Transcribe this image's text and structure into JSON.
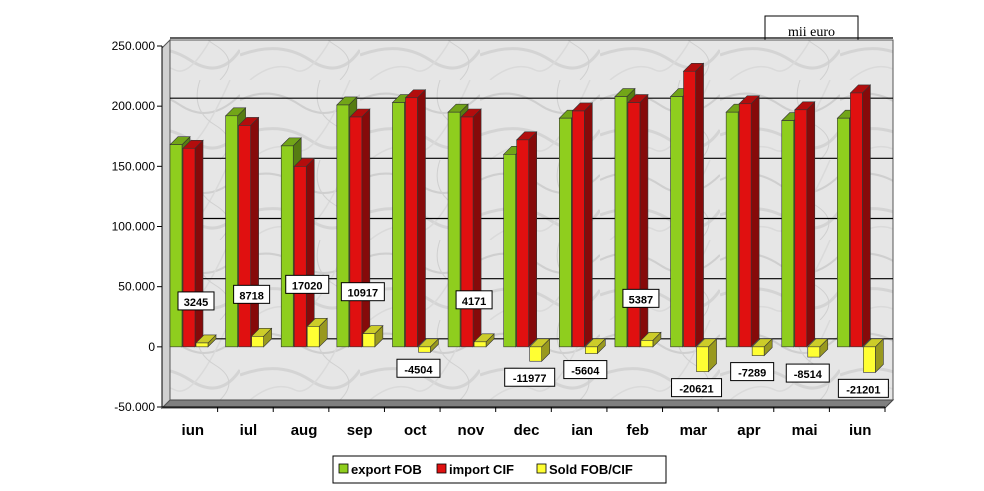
{
  "unit_label": "mii euro",
  "colors": {
    "export": "#8fce1e",
    "import": "#e01010",
    "sold": "#ffff33",
    "background": "#e9e9e9"
  },
  "chart_data": {
    "type": "bar",
    "categories": [
      "iun",
      "iul",
      "aug",
      "sep",
      "oct",
      "nov",
      "dec",
      "ian",
      "feb",
      "mar",
      "apr",
      "mai",
      "iun"
    ],
    "series": [
      {
        "name": "export FOB",
        "values": [
          168000,
          192000,
          167000,
          201000,
          203000,
          195000,
          160000,
          190000,
          208000,
          208000,
          195000,
          188000,
          190000
        ]
      },
      {
        "name": "import CIF",
        "values": [
          165000,
          184000,
          150000,
          191000,
          207000,
          191000,
          172000,
          196000,
          203000,
          229000,
          202000,
          197000,
          211000
        ]
      },
      {
        "name": "Sold FOB/CIF",
        "values": [
          3245,
          8718,
          17020,
          10917,
          -4504,
          4171,
          -11977,
          -5604,
          5387,
          -20621,
          -7289,
          -8514,
          -21201
        ]
      }
    ],
    "data_labels": [
      "3245",
      "8718",
      "17020",
      "10917",
      "-4504",
      "4171",
      "-11977",
      "-5604",
      "5387",
      "-20621",
      "-7289",
      "-8514",
      "-21201"
    ],
    "y_ticks": [
      "250.000",
      "200.000",
      "150.000",
      "100.000",
      "50.000",
      "0",
      "-50.000"
    ],
    "ylim": [
      -50000,
      250000
    ],
    "grid": true,
    "legend": "bottom"
  }
}
